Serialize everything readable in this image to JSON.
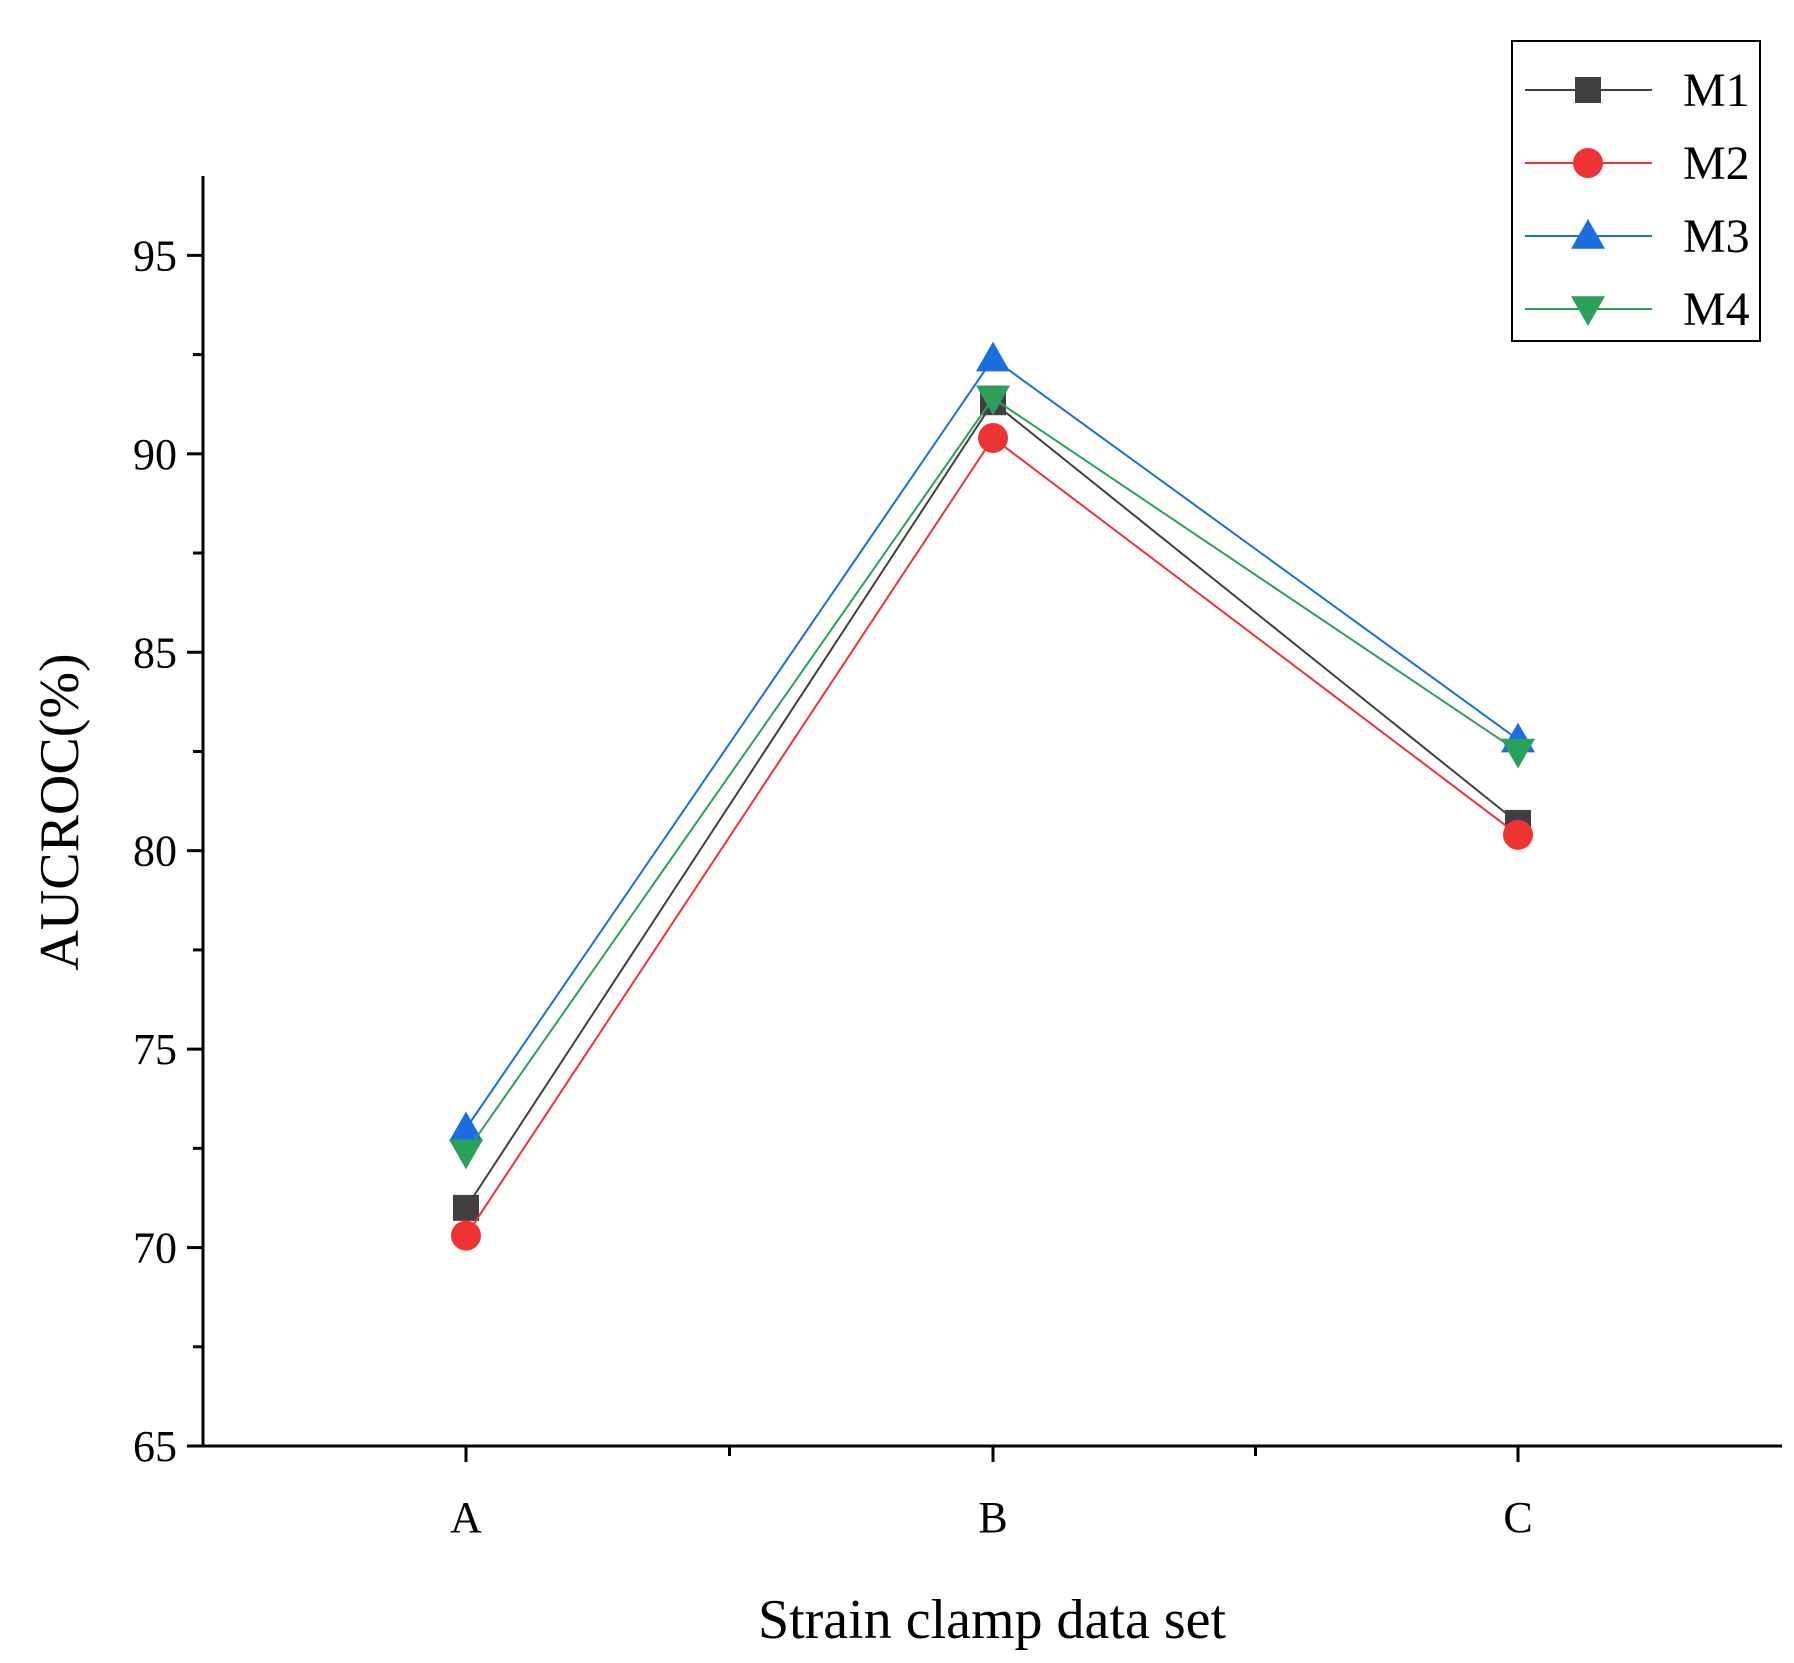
{
  "chart_data": {
    "type": "line",
    "title": "",
    "xlabel": "Strain clamp data set",
    "ylabel": "AUCROC(%)",
    "categories": [
      "A",
      "B",
      "C"
    ],
    "ylim": [
      65,
      97
    ],
    "yticks": [
      65,
      70,
      75,
      80,
      85,
      90,
      95
    ],
    "ytick_labels": [
      "65",
      "70",
      "75",
      "80",
      "85",
      "90",
      "95"
    ],
    "grid": false,
    "legend_position": "top-right",
    "series": [
      {
        "name": "M1",
        "marker": "square",
        "color": "#404040",
        "values": [
          71.0,
          91.3,
          80.7
        ]
      },
      {
        "name": "M2",
        "marker": "circle",
        "color": "#ee3333",
        "values": [
          70.3,
          90.4,
          80.4
        ]
      },
      {
        "name": "M3",
        "marker": "triangle-up",
        "color": "#1a6ee0",
        "values": [
          73.0,
          92.4,
          82.8
        ]
      },
      {
        "name": "M4",
        "marker": "triangle-down",
        "color": "#2aa05a",
        "values": [
          72.4,
          91.4,
          82.5
        ]
      }
    ]
  }
}
